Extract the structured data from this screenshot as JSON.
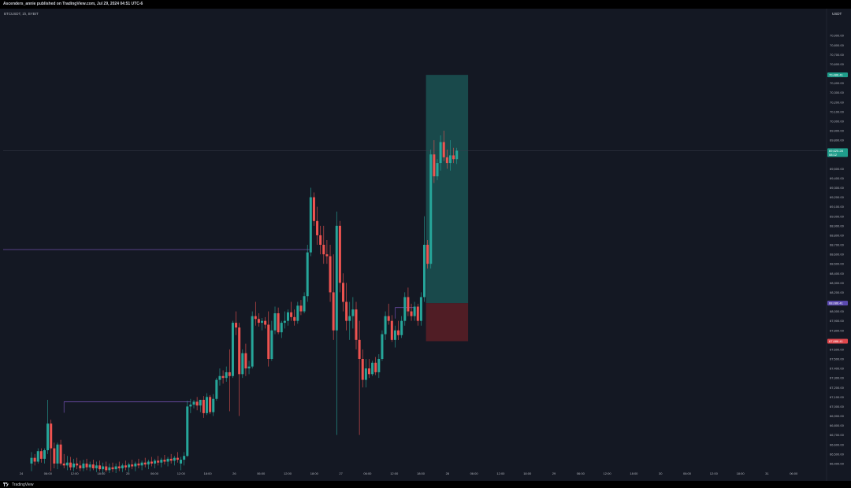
{
  "header": {
    "attribution": "Ascenders_annie published on TradingView.com, Jul 29, 2024 04:51 UTC-6"
  },
  "symbol_label": "BTCUSDT, 1h, BYBIT",
  "footer": {
    "brand": "TradingView"
  },
  "colors": {
    "background": "#141823",
    "bull": "#26a69a",
    "bear": "#ef5350",
    "level_line": "#7e57c2",
    "target_zone": "#1b5a5a",
    "stop_zone": "#5a1f26",
    "axis_text": "#b2b5be",
    "crosshair": "#3a3f4d"
  },
  "chart_data": {
    "type": "candlestick",
    "title": "BTCUSDT, 1h, BYBIT",
    "price_unit": "USDT",
    "y_range": [
      66300,
      71100
    ],
    "price_ticks": [
      "70,900.00",
      "70,800.00",
      "70,700.00",
      "70,600.00",
      "70,400.00",
      "70,300.00",
      "70,200.00",
      "70,100.00",
      "70,000.00",
      "69,900.00",
      "69,800.00",
      "69,700.00",
      "69,500.00",
      "69,400.00",
      "69,300.00",
      "69,200.00",
      "69,100.00",
      "69,000.00",
      "68,900.00",
      "68,800.00",
      "68,700.00",
      "68,600.00",
      "68,500.00",
      "68,400.00",
      "68,300.00",
      "68,200.00",
      "68,000.00",
      "67,900.00",
      "67,800.00",
      "67,700.00",
      "67,600.00",
      "67,500.00",
      "67,400.00",
      "67,300.00",
      "67,200.00",
      "67,100.00",
      "67,000.00",
      "66,900.00",
      "66,800.00",
      "66,700.00",
      "66,600.00",
      "66,500.00",
      "66,400.00"
    ],
    "time_ticks": [
      "24",
      "06:00",
      "12:00",
      "18:00",
      "25",
      "06:00",
      "12:00",
      "18:00",
      "26",
      "06:00",
      "12:00",
      "18:00",
      "27",
      "06:00",
      "12:00",
      "18:00",
      "28",
      "06:00",
      "12:00",
      "18:00",
      "29",
      "06:00",
      "12:00",
      "18:00",
      "30",
      "06:00",
      "12:00",
      "18:00",
      "31",
      "06:00"
    ],
    "candles": [
      {
        "o": 66400,
        "h": 66520,
        "l": 66320,
        "c": 66460
      },
      {
        "o": 66460,
        "h": 66500,
        "l": 66380,
        "c": 66420
      },
      {
        "o": 66420,
        "h": 66560,
        "l": 66400,
        "c": 66530
      },
      {
        "o": 66530,
        "h": 66560,
        "l": 66410,
        "c": 66450
      },
      {
        "o": 66450,
        "h": 66560,
        "l": 66400,
        "c": 66540
      },
      {
        "o": 66540,
        "h": 67070,
        "l": 66500,
        "c": 66820
      },
      {
        "o": 66820,
        "h": 66860,
        "l": 66320,
        "c": 66560
      },
      {
        "o": 66560,
        "h": 66620,
        "l": 66350,
        "c": 66400
      },
      {
        "o": 66400,
        "h": 66620,
        "l": 66340,
        "c": 66600
      },
      {
        "o": 66600,
        "h": 66650,
        "l": 66380,
        "c": 66400
      },
      {
        "o": 66400,
        "h": 66500,
        "l": 66350,
        "c": 66380
      },
      {
        "o": 66380,
        "h": 66480,
        "l": 66330,
        "c": 66410
      },
      {
        "o": 66410,
        "h": 66470,
        "l": 66330,
        "c": 66360
      },
      {
        "o": 66360,
        "h": 66450,
        "l": 66320,
        "c": 66400
      },
      {
        "o": 66400,
        "h": 66460,
        "l": 66340,
        "c": 66380
      },
      {
        "o": 66380,
        "h": 66430,
        "l": 66320,
        "c": 66350
      },
      {
        "o": 66350,
        "h": 66440,
        "l": 66320,
        "c": 66400
      },
      {
        "o": 66400,
        "h": 66450,
        "l": 66330,
        "c": 66360
      },
      {
        "o": 66360,
        "h": 66420,
        "l": 66320,
        "c": 66390
      },
      {
        "o": 66390,
        "h": 66440,
        "l": 66330,
        "c": 66350
      },
      {
        "o": 66350,
        "h": 66420,
        "l": 66310,
        "c": 66380
      },
      {
        "o": 66380,
        "h": 66430,
        "l": 66320,
        "c": 66340
      },
      {
        "o": 66340,
        "h": 66410,
        "l": 66300,
        "c": 66370
      },
      {
        "o": 66370,
        "h": 66420,
        "l": 66310,
        "c": 66330
      },
      {
        "o": 66330,
        "h": 66400,
        "l": 66300,
        "c": 66360
      },
      {
        "o": 66360,
        "h": 66410,
        "l": 66310,
        "c": 66340
      },
      {
        "o": 66340,
        "h": 66400,
        "l": 66300,
        "c": 66370
      },
      {
        "o": 66370,
        "h": 66420,
        "l": 66320,
        "c": 66350
      },
      {
        "o": 66350,
        "h": 66400,
        "l": 66310,
        "c": 66380
      },
      {
        "o": 66380,
        "h": 66430,
        "l": 66330,
        "c": 66360
      },
      {
        "o": 66360,
        "h": 66410,
        "l": 66310,
        "c": 66390
      },
      {
        "o": 66390,
        "h": 66440,
        "l": 66340,
        "c": 66370
      },
      {
        "o": 66370,
        "h": 66420,
        "l": 66320,
        "c": 66400
      },
      {
        "o": 66400,
        "h": 66450,
        "l": 66350,
        "c": 66380
      },
      {
        "o": 66380,
        "h": 66430,
        "l": 66330,
        "c": 66410
      },
      {
        "o": 66410,
        "h": 66460,
        "l": 66360,
        "c": 66390
      },
      {
        "o": 66390,
        "h": 66440,
        "l": 66340,
        "c": 66420
      },
      {
        "o": 66420,
        "h": 66470,
        "l": 66370,
        "c": 66400
      },
      {
        "o": 66400,
        "h": 66450,
        "l": 66350,
        "c": 66430
      },
      {
        "o": 66430,
        "h": 66480,
        "l": 66380,
        "c": 66410
      },
      {
        "o": 66410,
        "h": 66460,
        "l": 66360,
        "c": 66440
      },
      {
        "o": 66440,
        "h": 66490,
        "l": 66390,
        "c": 66420
      },
      {
        "o": 66420,
        "h": 66470,
        "l": 66370,
        "c": 66450
      },
      {
        "o": 66450,
        "h": 66500,
        "l": 66400,
        "c": 66430
      },
      {
        "o": 66430,
        "h": 66480,
        "l": 66380,
        "c": 66460
      },
      {
        "o": 66460,
        "h": 66520,
        "l": 66410,
        "c": 66440
      },
      {
        "o": 66400,
        "h": 66470,
        "l": 66330,
        "c": 66440
      },
      {
        "o": 66440,
        "h": 66520,
        "l": 66380,
        "c": 66480
      },
      {
        "o": 66480,
        "h": 67060,
        "l": 66470,
        "c": 67000
      },
      {
        "o": 67000,
        "h": 67080,
        "l": 66930,
        "c": 67020
      },
      {
        "o": 67020,
        "h": 67070,
        "l": 66980,
        "c": 67050
      },
      {
        "o": 67050,
        "h": 67100,
        "l": 66960,
        "c": 67010
      },
      {
        "o": 67010,
        "h": 67070,
        "l": 66940,
        "c": 67070
      },
      {
        "o": 67070,
        "h": 67110,
        "l": 66880,
        "c": 66930
      },
      {
        "o": 66930,
        "h": 67140,
        "l": 66910,
        "c": 67100
      },
      {
        "o": 67100,
        "h": 67120,
        "l": 66920,
        "c": 66940
      },
      {
        "o": 66940,
        "h": 67130,
        "l": 66900,
        "c": 67080
      },
      {
        "o": 67080,
        "h": 67300,
        "l": 67060,
        "c": 67280
      },
      {
        "o": 67280,
        "h": 67400,
        "l": 67220,
        "c": 67320
      },
      {
        "o": 67320,
        "h": 67380,
        "l": 67240,
        "c": 67300
      },
      {
        "o": 67300,
        "h": 67420,
        "l": 67260,
        "c": 67360
      },
      {
        "o": 67360,
        "h": 67600,
        "l": 66950,
        "c": 67320
      },
      {
        "o": 67320,
        "h": 67900,
        "l": 67300,
        "c": 67880
      },
      {
        "o": 67880,
        "h": 68000,
        "l": 67750,
        "c": 67830
      },
      {
        "o": 67830,
        "h": 67880,
        "l": 66900,
        "c": 67340
      },
      {
        "o": 67340,
        "h": 67600,
        "l": 67300,
        "c": 67560
      },
      {
        "o": 67560,
        "h": 67660,
        "l": 67320,
        "c": 67400
      },
      {
        "o": 67400,
        "h": 67480,
        "l": 67340,
        "c": 67420
      },
      {
        "o": 67420,
        "h": 68000,
        "l": 67400,
        "c": 67950
      },
      {
        "o": 67950,
        "h": 68100,
        "l": 67850,
        "c": 67920
      },
      {
        "o": 67920,
        "h": 67980,
        "l": 67840,
        "c": 67880
      },
      {
        "o": 67880,
        "h": 67930,
        "l": 67800,
        "c": 67900
      },
      {
        "o": 67900,
        "h": 67940,
        "l": 67820,
        "c": 67860
      },
      {
        "o": 67860,
        "h": 68000,
        "l": 67420,
        "c": 67500
      },
      {
        "o": 67500,
        "h": 67900,
        "l": 67480,
        "c": 67800
      },
      {
        "o": 67800,
        "h": 68050,
        "l": 67760,
        "c": 67980
      },
      {
        "o": 67980,
        "h": 68040,
        "l": 67760,
        "c": 67780
      },
      {
        "o": 67780,
        "h": 67900,
        "l": 67720,
        "c": 67880
      },
      {
        "o": 67880,
        "h": 68000,
        "l": 67820,
        "c": 67900
      },
      {
        "o": 67900,
        "h": 68020,
        "l": 67850,
        "c": 67990
      },
      {
        "o": 67990,
        "h": 68100,
        "l": 67900,
        "c": 67940
      },
      {
        "o": 67940,
        "h": 68020,
        "l": 67850,
        "c": 67900
      },
      {
        "o": 67900,
        "h": 68100,
        "l": 67870,
        "c": 68060
      },
      {
        "o": 68060,
        "h": 68120,
        "l": 67960,
        "c": 68000
      },
      {
        "o": 68000,
        "h": 68200,
        "l": 67980,
        "c": 68160
      },
      {
        "o": 68160,
        "h": 68700,
        "l": 68100,
        "c": 68620
      },
      {
        "o": 68620,
        "h": 69300,
        "l": 68580,
        "c": 69200
      },
      {
        "o": 69200,
        "h": 69250,
        "l": 68900,
        "c": 68950
      },
      {
        "o": 68950,
        "h": 69100,
        "l": 68700,
        "c": 68800
      },
      {
        "o": 68800,
        "h": 68900,
        "l": 68600,
        "c": 68700
      },
      {
        "o": 68700,
        "h": 68900,
        "l": 68500,
        "c": 68600
      },
      {
        "o": 68600,
        "h": 68750,
        "l": 68500,
        "c": 68580
      },
      {
        "o": 68580,
        "h": 68700,
        "l": 68100,
        "c": 68200
      },
      {
        "o": 68200,
        "h": 68600,
        "l": 67700,
        "c": 67800
      },
      {
        "o": 67800,
        "h": 69050,
        "l": 66700,
        "c": 68900
      },
      {
        "o": 68900,
        "h": 68950,
        "l": 68200,
        "c": 68300
      },
      {
        "o": 68300,
        "h": 68400,
        "l": 68000,
        "c": 68100
      },
      {
        "o": 68100,
        "h": 68300,
        "l": 67800,
        "c": 67900
      },
      {
        "o": 67900,
        "h": 68100,
        "l": 67700,
        "c": 67950
      },
      {
        "o": 67950,
        "h": 68150,
        "l": 67820,
        "c": 68020
      },
      {
        "o": 68020,
        "h": 68100,
        "l": 67600,
        "c": 67700
      },
      {
        "o": 67700,
        "h": 67900,
        "l": 66700,
        "c": 67500
      },
      {
        "o": 67500,
        "h": 67600,
        "l": 67200,
        "c": 67280
      },
      {
        "o": 67280,
        "h": 67500,
        "l": 67200,
        "c": 67400
      },
      {
        "o": 67400,
        "h": 67500,
        "l": 67300,
        "c": 67340
      },
      {
        "o": 67340,
        "h": 67480,
        "l": 67320,
        "c": 67460
      },
      {
        "o": 67460,
        "h": 67520,
        "l": 67330,
        "c": 67360
      },
      {
        "o": 67360,
        "h": 67550,
        "l": 67300,
        "c": 67500
      },
      {
        "o": 67500,
        "h": 67800,
        "l": 67480,
        "c": 67760
      },
      {
        "o": 67760,
        "h": 68000,
        "l": 67700,
        "c": 67950
      },
      {
        "o": 67950,
        "h": 68080,
        "l": 67860,
        "c": 67900
      },
      {
        "o": 67900,
        "h": 67960,
        "l": 67680,
        "c": 67700
      },
      {
        "o": 67700,
        "h": 67850,
        "l": 67620,
        "c": 67800
      },
      {
        "o": 67800,
        "h": 67900,
        "l": 67700,
        "c": 67750
      },
      {
        "o": 67750,
        "h": 67950,
        "l": 67720,
        "c": 67900
      },
      {
        "o": 67900,
        "h": 68200,
        "l": 67850,
        "c": 68150
      },
      {
        "o": 68150,
        "h": 68250,
        "l": 67950,
        "c": 68000
      },
      {
        "o": 68000,
        "h": 68080,
        "l": 67900,
        "c": 67950
      },
      {
        "o": 67950,
        "h": 68100,
        "l": 67900,
        "c": 68050
      },
      {
        "o": 68050,
        "h": 68080,
        "l": 67850,
        "c": 67900
      },
      {
        "o": 67900,
        "h": 68200,
        "l": 67850,
        "c": 68150
      },
      {
        "o": 68150,
        "h": 69000,
        "l": 68100,
        "c": 68700
      },
      {
        "o": 68700,
        "h": 68750,
        "l": 68450,
        "c": 68500
      },
      {
        "o": 68500,
        "h": 69700,
        "l": 68450,
        "c": 69650
      },
      {
        "o": 69650,
        "h": 69800,
        "l": 69350,
        "c": 69420
      },
      {
        "o": 69420,
        "h": 69600,
        "l": 69380,
        "c": 69560
      },
      {
        "o": 69560,
        "h": 69850,
        "l": 69480,
        "c": 69780
      },
      {
        "o": 69780,
        "h": 69900,
        "l": 69580,
        "c": 69620
      },
      {
        "o": 69620,
        "h": 69700,
        "l": 69500,
        "c": 69560
      },
      {
        "o": 69560,
        "h": 69800,
        "l": 69480,
        "c": 69640
      },
      {
        "o": 69640,
        "h": 69720,
        "l": 69560,
        "c": 69600
      },
      {
        "o": 69600,
        "h": 69720,
        "l": 69550,
        "c": 69690
      }
    ],
    "levels": [
      {
        "name": "level-68650",
        "price": 68650,
        "from": 0,
        "to": 86
      },
      {
        "name": "level-67050",
        "price": 67050,
        "from": 10,
        "to": 49
      },
      {
        "name": "level-68040",
        "price": 68040,
        "from": 112,
        "to": 118
      }
    ],
    "position": {
      "entry": 68086.41,
      "target": 70486.41,
      "stop": 67686.41,
      "from": 122,
      "to": 134
    },
    "price_labels": {
      "target": "70,486.41",
      "last": "69,620.28",
      "countdown": "08:12",
      "entry": "68,086.41",
      "stop": "67,686.41"
    }
  }
}
